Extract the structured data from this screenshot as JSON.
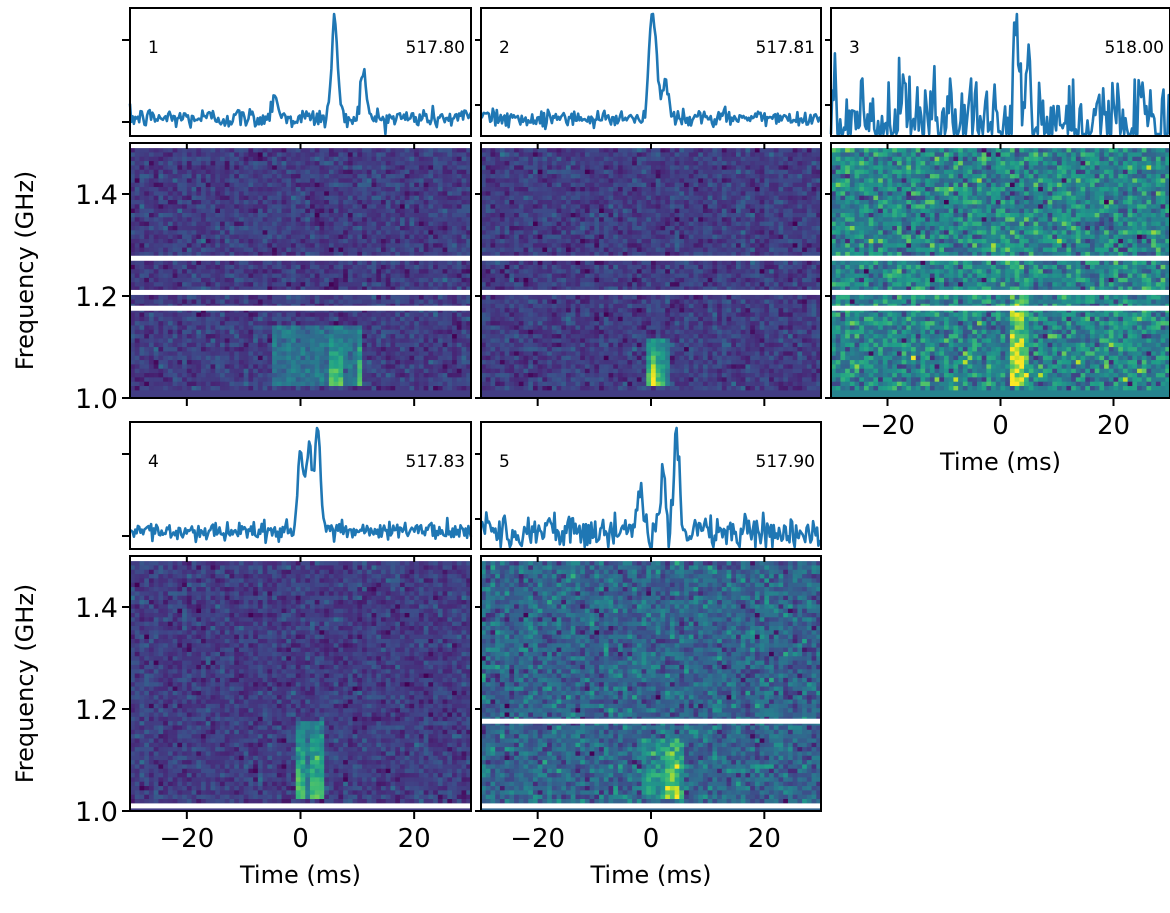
{
  "figure": {
    "xlabel": "Time (ms)",
    "ylabel": "Frequency (GHz)"
  },
  "colors": {
    "profile_line": "#1f77b4",
    "colormap": "viridis",
    "masked_channel": "#ffffff"
  },
  "chart_data": [
    {
      "burst": "1",
      "value_label": "517.80",
      "type": "line+heatmap",
      "profile_peaks": [
        {
          "t": -4.5,
          "h": 0.25
        },
        {
          "t": 6,
          "h": 1.0
        },
        {
          "t": 11,
          "h": 0.45
        }
      ],
      "noise": 0.05,
      "emission": {
        "t_start": -5,
        "t_end": 11,
        "f_low": 1.02,
        "f_high": 1.14,
        "hot_t": [
          6,
          11
        ]
      },
      "masked_channels_GHz": [
        1.274,
        1.207,
        1.176
      ],
      "xlim": [
        -30,
        30
      ],
      "ylim": [
        1.0,
        1.5
      ]
    },
    {
      "burst": "2",
      "value_label": "517.81",
      "type": "line+heatmap",
      "profile_peaks": [
        {
          "t": 0,
          "h": 0.95
        },
        {
          "t": 0.8,
          "h": 0.7
        },
        {
          "t": 2.5,
          "h": 0.45
        }
      ],
      "noise": 0.05,
      "emission": {
        "t_start": -1,
        "t_end": 3,
        "f_low": 1.02,
        "f_high": 1.12,
        "hot_t": [
          0,
          1
        ]
      },
      "masked_channels_GHz": [
        1.274,
        1.207
      ],
      "xlim": [
        -30,
        30
      ],
      "ylim": [
        1.0,
        1.5
      ]
    },
    {
      "burst": "3",
      "value_label": "518.00",
      "type": "line+heatmap",
      "profile_peaks": [
        {
          "t": 3,
          "h": 1.0
        },
        {
          "t": 5,
          "h": 0.35
        }
      ],
      "noise": 0.2,
      "emission": {
        "t_start": 2,
        "t_end": 5,
        "f_low": 1.02,
        "f_high": 1.2,
        "hot_t": [
          3
        ]
      },
      "masked_channels_GHz": [
        1.274,
        1.207,
        1.176
      ],
      "xlim": [
        -30,
        30
      ],
      "ylim": [
        1.0,
        1.5
      ],
      "xticks": [
        -20,
        0,
        20
      ],
      "xlabel": "Time (ms)"
    },
    {
      "burst": "4",
      "value_label": "517.83",
      "type": "line+heatmap",
      "profile_peaks": [
        {
          "t": 0,
          "h": 0.75
        },
        {
          "t": 1.5,
          "h": 0.8
        },
        {
          "t": 3,
          "h": 1.0
        }
      ],
      "noise": 0.04,
      "emission": {
        "t_start": -1,
        "t_end": 4,
        "f_low": 1.02,
        "f_high": 1.18,
        "hot_t": [
          0,
          3
        ]
      },
      "masked_channels_GHz": [
        1.01
      ],
      "xlim": [
        -30,
        30
      ],
      "ylim": [
        1.0,
        1.5
      ],
      "xticks": [
        -20,
        0,
        20
      ],
      "yticks": [
        1.0,
        1.2,
        1.4
      ],
      "xlabel": "Time (ms)",
      "ylabel": "Frequency (GHz)"
    },
    {
      "burst": "5",
      "value_label": "517.90",
      "type": "line+heatmap",
      "profile_peaks": [
        {
          "t": -2,
          "h": 0.4
        },
        {
          "t": 2,
          "h": 0.55
        },
        {
          "t": 4.5,
          "h": 1.0
        }
      ],
      "noise": 0.1,
      "emission": {
        "t_start": -2,
        "t_end": 6,
        "f_low": 1.02,
        "f_high": 1.14,
        "hot_t": [
          4
        ]
      },
      "masked_channels_GHz": [
        1.176,
        1.01
      ],
      "xlim": [
        -30,
        30
      ],
      "ylim": [
        1.0,
        1.5
      ],
      "xticks": [
        -20,
        0,
        20
      ],
      "xlabel": "Time (ms)"
    }
  ],
  "shared_yticks": [
    1.0,
    1.2,
    1.4
  ]
}
